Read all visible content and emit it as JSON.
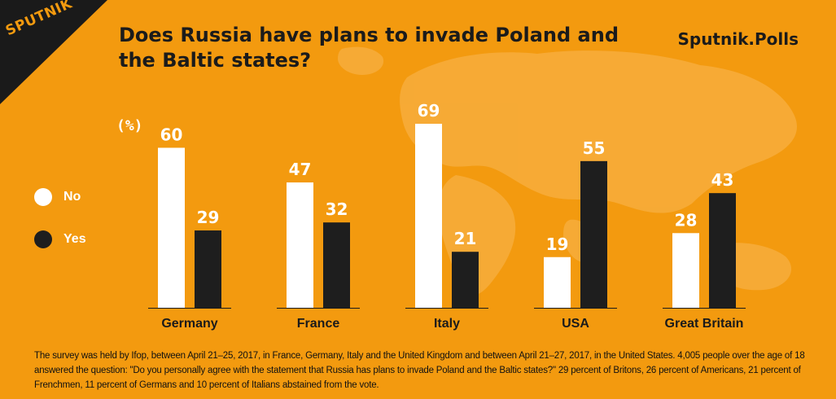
{
  "brand": {
    "logo": "SPUTNIK",
    "polls": "Sputnik.Polls"
  },
  "chart_data": {
    "type": "bar",
    "title": "Does Russia have plans to invade Poland and the Baltic states?",
    "unit_label": "(%)",
    "categories": [
      "Germany",
      "France",
      "Italy",
      "USA",
      "Great Britain"
    ],
    "series": [
      {
        "name": "No",
        "color": "#FFFFFF",
        "values": [
          60,
          47,
          69,
          19,
          28
        ]
      },
      {
        "name": "Yes",
        "color": "#1E1E1E",
        "values": [
          29,
          32,
          21,
          55,
          43
        ]
      }
    ],
    "ylim": [
      0,
      69
    ],
    "grid": false,
    "legend": "left"
  },
  "footnote": "The survey was held by Ifop, between April 21–25, 2017, in France, Germany, Italy and the United Kingdom and between April 21–27, 2017, in the United States. 4,005 people over the age of 18 answered the question: \"Do you personally agree with the statement that Russia has plans to invade Poland and the Baltic states?\" 29 percent of Britons, 26 percent of Americans, 21 percent of Frenchmen, 11 percent of Germans and 10 percent of Italians abstained from the vote.",
  "colors": {
    "background": "#F39A0F",
    "text_dark": "#1B1B1B",
    "bar_no": "#FFFFFF",
    "bar_yes": "#1E1E1E"
  }
}
